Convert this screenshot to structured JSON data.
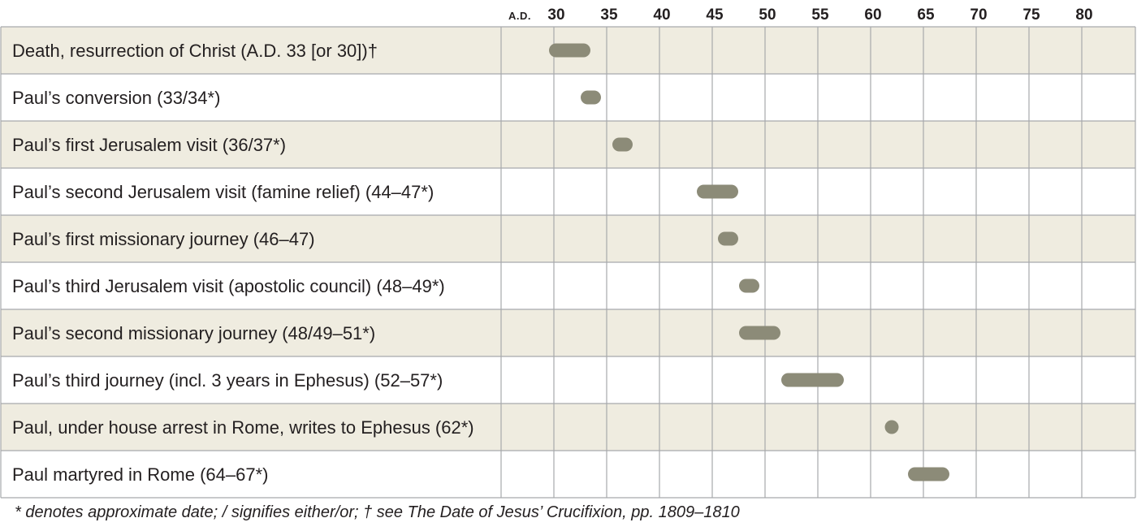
{
  "chart_data": {
    "type": "timeline",
    "title": "",
    "x_axis_prefix": "A.D.",
    "ticks": [
      30,
      35,
      40,
      45,
      50,
      55,
      60,
      65,
      70,
      75,
      80
    ],
    "xlim": [
      25,
      82.5
    ],
    "events": [
      {
        "label": "Death, resurrection of Christ (A.D. 33 [or 30])†",
        "start": 30,
        "end": 33
      },
      {
        "label": "Paul’s conversion (33/34*)",
        "start": 33,
        "end": 34
      },
      {
        "label": "Paul’s first Jerusalem visit (36/37*)",
        "start": 36,
        "end": 37
      },
      {
        "label": "Paul’s second Jerusalem visit (famine relief) (44–47*)",
        "start": 44,
        "end": 47
      },
      {
        "label": "Paul’s first missionary journey (46–47)",
        "start": 46,
        "end": 47
      },
      {
        "label": "Paul’s third Jerusalem visit (apostolic council) (48–49*)",
        "start": 48,
        "end": 49
      },
      {
        "label": "Paul’s second missionary journey (48/49–51*)",
        "start": 48,
        "end": 51
      },
      {
        "label": "Paul’s third journey (incl. 3 years in Ephesus) (52–57*)",
        "start": 52,
        "end": 57
      },
      {
        "label": "Paul, under house arrest in Rome, writes to Ephesus (62*)",
        "start": 62,
        "end": 62
      },
      {
        "label": "Paul martyred in Rome (64–67*)",
        "start": 64,
        "end": 67
      }
    ]
  },
  "footnote": "* denotes approximate date; / signifies either/or; † see The Date of Jesus’ Crucifixion, pp. 1809–1810",
  "colors": {
    "band": "#efece0",
    "bar": "#8c8b78",
    "grid": "#a7a9ac",
    "text": "#231f20"
  }
}
